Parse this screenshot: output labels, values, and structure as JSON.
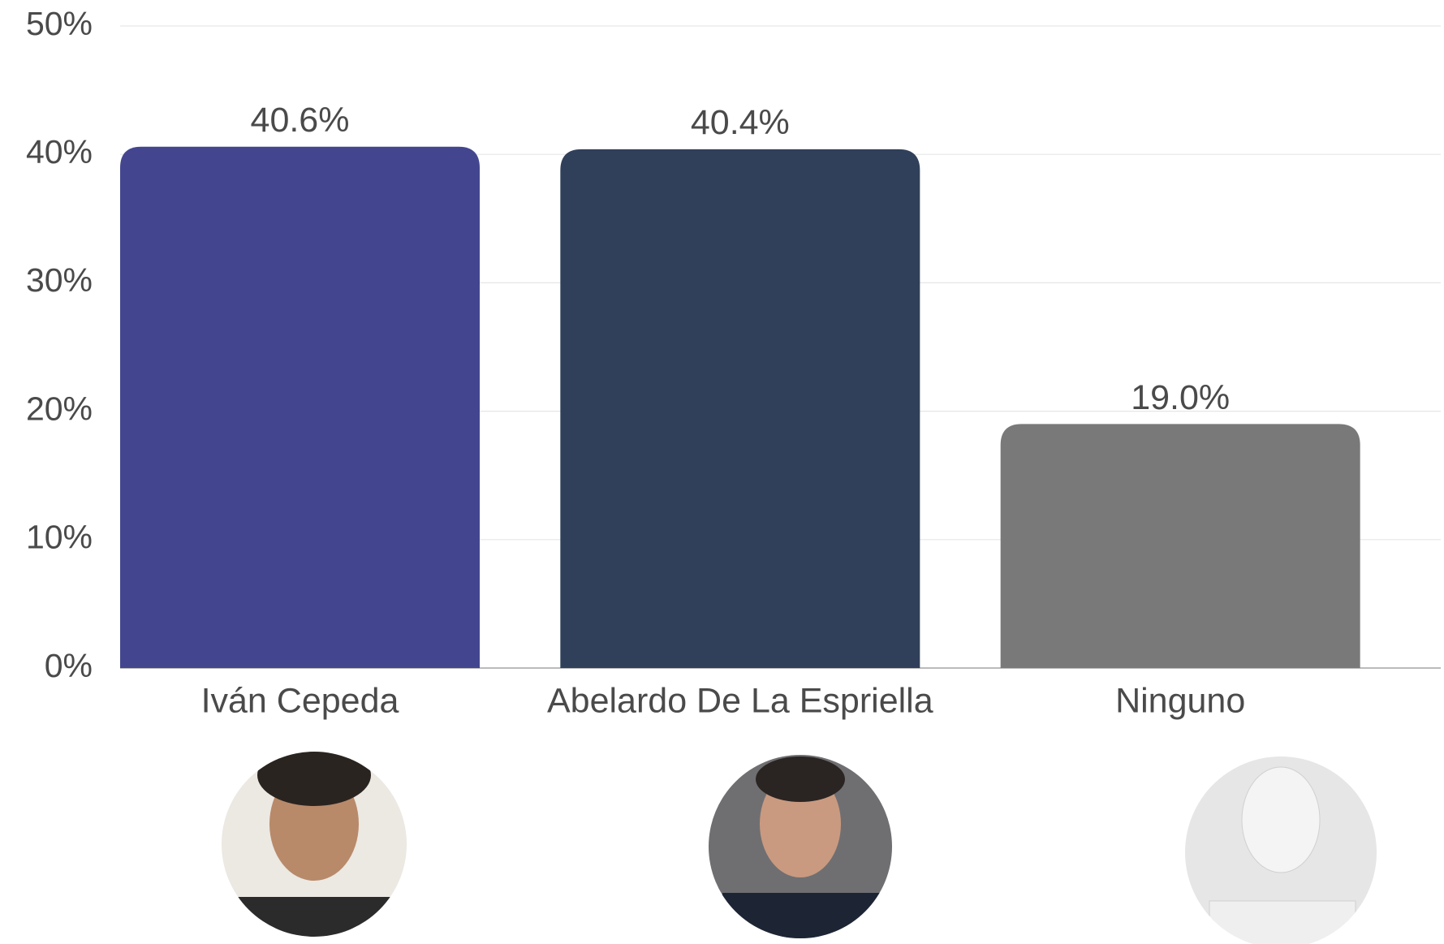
{
  "chart_data": {
    "type": "bar",
    "categories": [
      "Iván Cepeda",
      "Abelardo De La Espriella",
      "Ninguno"
    ],
    "values": [
      40.6,
      40.4,
      19.0
    ],
    "value_labels": [
      "40.6%",
      "40.4%",
      "19.0%"
    ],
    "colors": [
      "#43468f",
      "#30405a",
      "#797979"
    ],
    "ylim": [
      0,
      50
    ],
    "yticks": [
      {
        "value": 0,
        "label": "0%"
      },
      {
        "value": 10,
        "label": "10%"
      },
      {
        "value": 20,
        "label": "20%"
      },
      {
        "value": 30,
        "label": "30%"
      },
      {
        "value": 40,
        "label": "40%"
      },
      {
        "value": 50,
        "label": "50%"
      }
    ],
    "grid": true
  }
}
